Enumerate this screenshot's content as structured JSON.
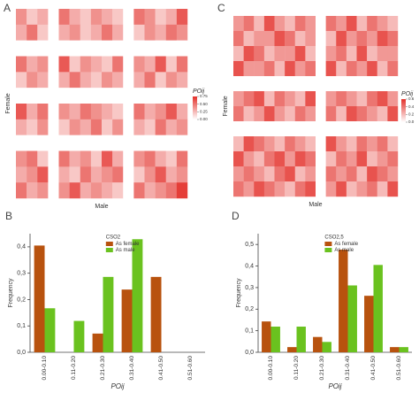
{
  "chart_data": [
    {
      "type": "heatmap",
      "panel": "A",
      "xlabel": "Male",
      "ylabel": "Female",
      "zlim": [
        0,
        0.75
      ],
      "colorbar": {
        "title": "POij",
        "ticks": [
          0.75,
          {
            "value": 0.5,
            "label": "0.50"
          },
          0.25,
          {
            "value": 0,
            "label": "0.00"
          }
        ]
      },
      "low_color": "#ffffff",
      "high_color": "#e3302a",
      "matrix": [
        [
          0.4,
          0.2,
          0.3,
          0,
          0.5,
          0.3,
          0.2,
          0.4,
          0.3,
          0.2,
          0,
          0.5,
          0.4,
          0.2,
          0.3,
          0.6
        ],
        [
          0.3,
          0.5,
          0.2,
          0,
          0.3,
          0.4,
          0.2,
          0.3,
          0.5,
          0.3,
          0,
          0.2,
          0.4,
          0.3,
          0.5,
          0.4
        ],
        [
          0,
          0,
          0,
          0,
          0,
          0,
          0,
          0,
          0,
          0,
          0,
          0,
          0,
          0,
          0,
          0
        ],
        [
          0.5,
          0.3,
          0.4,
          0,
          0.6,
          0.2,
          0.4,
          0.3,
          0.2,
          0.5,
          0,
          0.4,
          0.3,
          0.6,
          0.2,
          0.5
        ],
        [
          0.2,
          0.4,
          0.3,
          0,
          0.3,
          0.5,
          0.3,
          0.2,
          0.4,
          0.3,
          0,
          0.3,
          0.5,
          0.2,
          0.4,
          0.3
        ],
        [
          0,
          0,
          0,
          0,
          0,
          0,
          0,
          0,
          0,
          0,
          0,
          0,
          0,
          0,
          0,
          0
        ],
        [
          0.6,
          0.3,
          0.5,
          0,
          0.4,
          0.3,
          0.5,
          0.4,
          0.3,
          0.2,
          0,
          0.5,
          0.3,
          0.4,
          0.6,
          0.3
        ],
        [
          0.3,
          0.2,
          0.4,
          0,
          0.2,
          0.4,
          0.3,
          0.5,
          0.2,
          0.4,
          0,
          0.3,
          0.2,
          0.5,
          0.3,
          0.4
        ],
        [
          0,
          0,
          0,
          0,
          0,
          0,
          0,
          0,
          0,
          0,
          0,
          0,
          0,
          0,
          0,
          0
        ],
        [
          0.4,
          0.5,
          0.2,
          0,
          0.5,
          0.3,
          0.4,
          0.2,
          0.6,
          0.3,
          0,
          0.4,
          0.5,
          0.3,
          0.2,
          0.5
        ],
        [
          0.3,
          0.4,
          0.6,
          0,
          0.3,
          0.2,
          0.5,
          0.3,
          0.4,
          0.5,
          0,
          0.2,
          0.4,
          0.6,
          0.3,
          0.4
        ],
        [
          0.5,
          0.3,
          0.4,
          0,
          0.4,
          0.6,
          0.3,
          0.4,
          0.3,
          0.2,
          0,
          0.5,
          0.3,
          0.4,
          0.5,
          0.7
        ]
      ]
    },
    {
      "type": "heatmap",
      "panel": "C",
      "xlabel": "Male",
      "ylabel": "Female",
      "zlim": [
        0,
        0.6
      ],
      "colorbar": {
        "title": "POij",
        "ticks": [
          0.6,
          0.4,
          0.2,
          {
            "value": 0,
            "label": "0.0"
          }
        ]
      },
      "low_color": "#ffffff",
      "high_color": "#e3302a",
      "matrix": [
        [
          0.3,
          0.4,
          0.2,
          0.5,
          0.3,
          0.2,
          0.4,
          0.3,
          0,
          0.4,
          0.3,
          0.5,
          0.2,
          0.4,
          0.3,
          0.2
        ],
        [
          0.4,
          0.2,
          0.3,
          0.3,
          0.5,
          0.4,
          0.2,
          0.3,
          0,
          0.2,
          0.5,
          0.3,
          0.4,
          0.3,
          0.5,
          0.4
        ],
        [
          0.2,
          0.5,
          0.4,
          0.2,
          0.3,
          0.3,
          0.5,
          0.2,
          0,
          0.3,
          0.4,
          0.2,
          0.5,
          0.2,
          0.3,
          0.3
        ],
        [
          0.5,
          0.3,
          0.3,
          0.4,
          0.2,
          0.5,
          0.3,
          0.4,
          0,
          0.5,
          0.2,
          0.4,
          0.3,
          0.5,
          0.2,
          0.4
        ],
        [
          0,
          0,
          0,
          0,
          0,
          0,
          0,
          0,
          0,
          0,
          0,
          0,
          0,
          0,
          0,
          0
        ],
        [
          0.3,
          0.4,
          0.5,
          0.2,
          0.4,
          0.3,
          0.2,
          0.5,
          0,
          0.3,
          0.4,
          0.3,
          0.2,
          0.4,
          0.5,
          0.3
        ],
        [
          0.4,
          0.2,
          0.3,
          0.5,
          0.3,
          0.2,
          0.4,
          0.3,
          0,
          0.4,
          0.2,
          0.5,
          0.4,
          0.3,
          0.2,
          0.5
        ],
        [
          0,
          0,
          0,
          0,
          0,
          0,
          0,
          0,
          0,
          0,
          0,
          0,
          0,
          0,
          0,
          0
        ],
        [
          0.2,
          0.5,
          0.4,
          0.3,
          0.2,
          0.4,
          0.3,
          0.2,
          0,
          0.5,
          0.3,
          0.2,
          0.4,
          0.3,
          0.4,
          0.2
        ],
        [
          0.5,
          0.3,
          0.2,
          0.4,
          0.5,
          0.3,
          0.5,
          0.4,
          0,
          0.2,
          0.4,
          0.3,
          0.5,
          0.2,
          0.3,
          0.4
        ],
        [
          0.3,
          0.4,
          0.3,
          0.2,
          0.4,
          0.5,
          0.2,
          0.3,
          0,
          0.4,
          0.3,
          0.4,
          0.2,
          0.5,
          0.4,
          0.3
        ],
        [
          0.4,
          0.3,
          0.5,
          0.4,
          0.3,
          0.2,
          0.4,
          0.5,
          0,
          0.3,
          0.5,
          0.2,
          0.3,
          0.4,
          0.2,
          0.5
        ]
      ]
    },
    {
      "type": "bar",
      "panel": "B",
      "legend_title": "CSO2",
      "xlabel": "POij",
      "ylabel": "Frequency",
      "categories": [
        "0.00-0.10",
        "0.11-0.20",
        "0.21-0.30",
        "0.31-0.40",
        "0.41-0.50",
        "0.51-0.60"
      ],
      "series": [
        {
          "name": "As female",
          "color": "#b8520e",
          "values": [
            0.405,
            0,
            0.071,
            0.238,
            0.286,
            0
          ]
        },
        {
          "name": "As male",
          "color": "#6ac21f",
          "values": [
            0.167,
            0.119,
            0.286,
            0.429,
            0,
            0
          ]
        }
      ],
      "ylim": [
        0,
        0.45
      ],
      "yticks": [
        {
          "value": 0,
          "label": "0,0"
        },
        {
          "value": 0.1,
          "label": "0,1"
        },
        {
          "value": 0.2,
          "label": "0,2"
        },
        {
          "value": 0.3,
          "label": "0,3"
        },
        {
          "value": 0.4,
          "label": "0,4"
        }
      ]
    },
    {
      "type": "bar",
      "panel": "D",
      "legend_title": "CSO2,5",
      "xlabel": "POij",
      "ylabel": "Frequency",
      "categories": [
        "0.00-0.10",
        "0.11-0.20",
        "0.21-0.30",
        "0.31-0.40",
        "0.41-0.50",
        "0.51-0.60"
      ],
      "series": [
        {
          "name": "As female",
          "color": "#b8520e",
          "values": [
            0.143,
            0.024,
            0.071,
            0.476,
            0.262,
            0.024
          ]
        },
        {
          "name": "As male",
          "color": "#6ac21f",
          "values": [
            0.119,
            0.119,
            0.048,
            0.31,
            0.405,
            0.024
          ]
        }
      ],
      "ylim": [
        0,
        0.55
      ],
      "yticks": [
        {
          "value": 0,
          "label": "0,0"
        },
        {
          "value": 0.1,
          "label": "0,1"
        },
        {
          "value": 0.2,
          "label": "0,2"
        },
        {
          "value": 0.3,
          "label": "0,3"
        },
        {
          "value": 0.4,
          "label": "0,4"
        },
        {
          "value": 0.5,
          "label": "0,5"
        }
      ]
    }
  ]
}
